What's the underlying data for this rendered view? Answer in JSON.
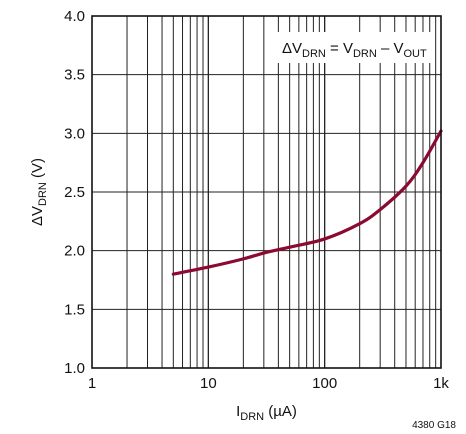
{
  "chart_data": {
    "type": "line",
    "x_scale": "log",
    "xlim": [
      1,
      1000
    ],
    "ylim": [
      1.0,
      4.0
    ],
    "x_ticks": [
      1,
      10,
      100,
      1000
    ],
    "x_tick_labels": [
      "1",
      "10",
      "100",
      "1k"
    ],
    "y_ticks": [
      1.0,
      1.5,
      2.0,
      2.5,
      3.0,
      3.5,
      4.0
    ],
    "y_tick_labels": [
      "1.0",
      "1.5",
      "2.0",
      "2.5",
      "3.0",
      "3.5",
      "4.0"
    ],
    "grid": true,
    "xlabel": {
      "main": "I",
      "sub": "DRN",
      "unit": " (µA)"
    },
    "ylabel": {
      "main": "ΔV",
      "sub": "DRN",
      "unit": " (V)"
    },
    "annotation": {
      "parts": [
        {
          "t": "ΔV",
          "sub": false
        },
        {
          "t": "DRN",
          "sub": true
        },
        {
          "t": " = V",
          "sub": false
        },
        {
          "t": "DRN",
          "sub": true
        },
        {
          "t": " – V",
          "sub": false
        },
        {
          "t": "OUT",
          "sub": true
        }
      ],
      "position": "top-right"
    },
    "figure_id": "4380 G18",
    "series": [
      {
        "color": "#8b0a32",
        "x": [
          5,
          10,
          20,
          30,
          50,
          100,
          200,
          300,
          500,
          700,
          1000
        ],
        "y": [
          1.8,
          1.86,
          1.93,
          1.98,
          2.03,
          2.1,
          2.23,
          2.35,
          2.55,
          2.75,
          3.02
        ]
      }
    ]
  }
}
